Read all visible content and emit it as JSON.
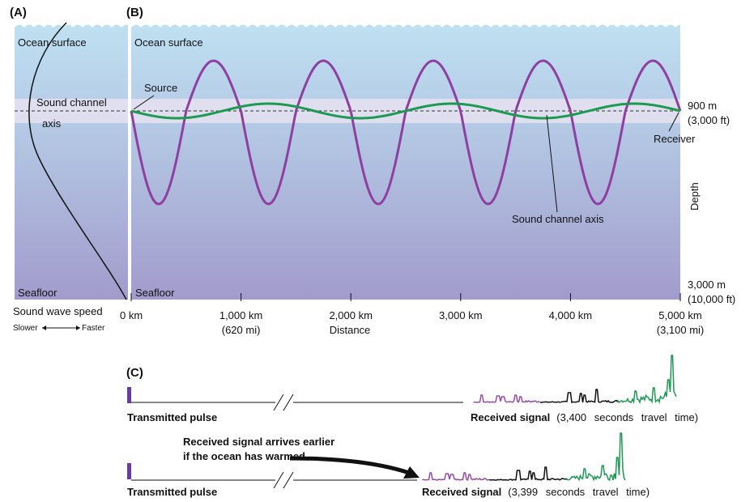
{
  "panel_a": {
    "label": "(A)",
    "surface": "Ocean surface",
    "axis_label": [
      "Sound channel",
      "axis"
    ],
    "seafloor": "Seafloor",
    "speed_title": "Sound wave speed",
    "slower": "Slower",
    "faster": "Faster"
  },
  "panel_b": {
    "label": "(B)",
    "surface": "Ocean surface",
    "source": "Source",
    "depth_axis": "900 m",
    "depth_axis_ft": "(3,000 ft)",
    "receiver": "Receiver",
    "depth": "Depth",
    "channel_axis": "Sound channel axis",
    "depth_floor": "3,000 m",
    "depth_floor_ft": "(10,000 ft)",
    "seafloor": "Seafloor",
    "distance_ticks": [
      {
        "km": "0 km"
      },
      {
        "km": "1,000 km",
        "mi": "(620 mi)"
      },
      {
        "km": "2,000 km"
      },
      {
        "km": "3,000 km"
      },
      {
        "km": "4,000 km"
      },
      {
        "km": "5,000 km",
        "mi": "(3,100 mi)"
      }
    ],
    "distance": "Distance"
  },
  "panel_c": {
    "label": "(C)",
    "rows": [
      {
        "transmitted": "Transmitted pulse",
        "received": "Received signal",
        "travel": "(3,400 seconds travel time)"
      },
      {
        "transmitted": "Transmitted pulse",
        "received": "Received signal",
        "travel": "(3,399 seconds travel time)"
      }
    ],
    "note": [
      "Received signal arrives earlier",
      "if the ocean has warmed."
    ]
  }
}
